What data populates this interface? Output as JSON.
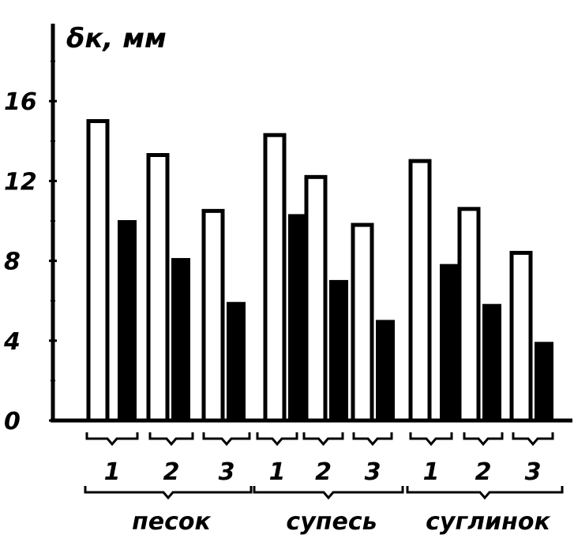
{
  "chart_data": {
    "type": "bar",
    "ylabel": "δк, мм",
    "ylim": [
      0,
      19
    ],
    "yticks": [
      "0",
      "4",
      "8",
      "12",
      "16"
    ],
    "groups": [
      {
        "label": "песок",
        "subgroups": [
          {
            "label": "1",
            "open": 15.0,
            "filled": 10.0
          },
          {
            "label": "2",
            "open": 13.3,
            "filled": 8.1
          },
          {
            "label": "3",
            "open": 10.5,
            "filled": 5.9
          }
        ]
      },
      {
        "label": "супесь",
        "subgroups": [
          {
            "label": "1",
            "open": 14.3,
            "filled": 10.3
          },
          {
            "label": "2",
            "open": 12.2,
            "filled": 7.0
          },
          {
            "label": "3",
            "open": 9.8,
            "filled": 5.0
          }
        ]
      },
      {
        "label": "суглинок",
        "subgroups": [
          {
            "label": "1",
            "open": 13.0,
            "filled": 7.8
          },
          {
            "label": "2",
            "open": 10.6,
            "filled": 5.8
          },
          {
            "label": "3",
            "open": 8.4,
            "filled": 3.9
          }
        ]
      }
    ],
    "colors": {
      "ink": "#000000",
      "background": "#ffffff"
    }
  }
}
